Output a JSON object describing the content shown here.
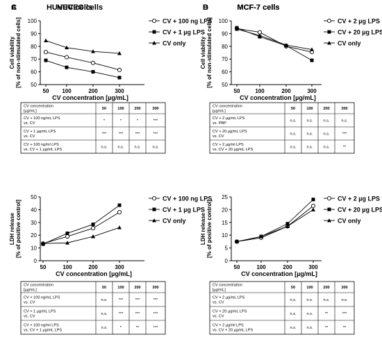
{
  "panels": [
    {
      "letter": "A",
      "table": {
        "header": [
          "CV concentration\n[µg/mL]",
          "50",
          "100",
          "200",
          "300"
        ],
        "rows": [
          [
            "CV + 100 ng/mL LPS\nvs. CV",
            "*",
            "*",
            "*",
            "***"
          ],
          [
            "CV + 1 µg/mL LPS\nvs. CV",
            "***",
            "***",
            "***",
            "***"
          ],
          [
            "CV + 100 ng/ml LPS\nvs. CV + 1 µg/mL LPS",
            "n.s.",
            "n.s.",
            "n.s.",
            "n.s."
          ]
        ]
      }
    },
    {
      "letter": "B",
      "table": {
        "header": [
          "CV concentration\n[µg/mL]",
          "50",
          "100",
          "200",
          "300"
        ],
        "rows": [
          [
            "CV + 2 µg/mL LPS\nvs. PBP",
            "n.s.",
            "n.s.",
            "n.s.",
            "n.s."
          ],
          [
            "CV + 20 µg/mL LPS\nvs. CV",
            "n.s.",
            "n.s.",
            "n.s.",
            "***"
          ],
          [
            "CV + 2 µg/ml LPS\nvs. CV + 20 µg/mL LPS",
            "n.s.",
            "n.s.",
            "n.s.",
            "**"
          ]
        ]
      }
    },
    {
      "letter": "C",
      "table": {
        "header": [
          "CV concentration\n[µg/mL]",
          "50",
          "100",
          "200",
          "300"
        ],
        "rows": [
          [
            "CV + 100 ng/mL LPS\nvs. CV",
            "n.s.",
            "***",
            "***",
            "***"
          ],
          [
            "CV + 1 µg/mL LPS\nvs. CV",
            "n.s.",
            "***",
            "***",
            "***"
          ],
          [
            "CV + 100 ng/ml LPS\nvs. CV + 1 µg/mL LPS",
            "n.s.",
            "*",
            "**",
            "***"
          ]
        ]
      }
    },
    {
      "letter": "D",
      "table": {
        "header": [
          "CV concentration\n[µg/mL]",
          "50",
          "100",
          "200",
          "300"
        ],
        "rows": [
          [
            "CV + 2 µg/mL LPS\nvs. CV",
            "n.s.",
            "n.s.",
            "n.s.",
            "n.s."
          ],
          [
            "CV + 20 µg/mL LPS\nvs. CV",
            "n.s.",
            "n.s.",
            "**",
            "***"
          ],
          [
            "CV + 2 µg/ml LPS\nvs. CV + 20 µg/mL LPS",
            "n.s.",
            "n.s.",
            "**",
            "**"
          ]
        ]
      }
    }
  ],
  "chart_data": [
    {
      "type": "line",
      "title": "HUVEC cells",
      "xlabel": "CV  concentration [µg/mL]",
      "ylabel": [
        "Cell viability",
        "[% of non-stimulated cells]"
      ],
      "categories": [
        "50",
        "100",
        "200",
        "300"
      ],
      "ylim": [
        50,
        100
      ],
      "yticks": [
        50,
        60,
        70,
        80,
        90,
        100
      ],
      "legend_position": "right",
      "series": [
        {
          "name": "CV + 100 ng LPS",
          "marker": "open-circle",
          "values": [
            75.5,
            71.5,
            67,
            61.5
          ]
        },
        {
          "name": "CV + 1 µg LPS",
          "marker": "filled-square",
          "values": [
            69,
            63.5,
            60,
            55.5
          ]
        },
        {
          "name": "CV only",
          "marker": "filled-triangle",
          "values": [
            84.5,
            79,
            76,
            74.5
          ]
        }
      ]
    },
    {
      "type": "line",
      "title": "MCF-7 cells",
      "xlabel": "CV  concentration [µg/mL]",
      "ylabel": [
        "Cell viability",
        "[% of non-stimulated cells]"
      ],
      "categories": [
        "50",
        "100",
        "200",
        "300"
      ],
      "ylim": [
        50,
        100
      ],
      "yticks": [
        50,
        60,
        70,
        80,
        90,
        100
      ],
      "legend_position": "right",
      "series": [
        {
          "name": "CV + 2 µg LPS",
          "marker": "open-circle",
          "values": [
            94,
            91,
            80,
            75.5
          ]
        },
        {
          "name": "CV + 20 µg LPS",
          "marker": "filled-square",
          "values": [
            94.5,
            87.5,
            80.5,
            69
          ]
        },
        {
          "name": "CV only",
          "marker": "filled-triangle",
          "values": [
            93.5,
            88.5,
            81,
            77.5
          ]
        }
      ]
    },
    {
      "type": "line",
      "title": "HUVEC cells",
      "xlabel": "CV concentration [µg/mL]",
      "ylabel": [
        "LDH release",
        "[% of positive control]"
      ],
      "categories": [
        "50",
        "100",
        "200",
        "300"
      ],
      "ylim": [
        0,
        50
      ],
      "yticks": [
        0,
        10,
        20,
        30,
        40,
        50
      ],
      "legend_position": "right",
      "series": [
        {
          "name": "CV + 100 ng LPS",
          "marker": "open-circle",
          "values": [
            13.5,
            19,
            25.5,
            38
          ]
        },
        {
          "name": "CV + 1 µg LPS",
          "marker": "filled-square",
          "values": [
            13,
            21.5,
            28.5,
            43.5
          ]
        },
        {
          "name": "CV only",
          "marker": "filled-triangle",
          "values": [
            13.5,
            14,
            19,
            26
          ]
        }
      ]
    },
    {
      "type": "line",
      "title": "MCF-7 cells",
      "xlabel": "CV concentration [µg/mL]",
      "ylabel": [
        "LDH release",
        "[% of positive control]"
      ],
      "categories": [
        "50",
        "100",
        "200",
        "300"
      ],
      "ylim": [
        0,
        25
      ],
      "yticks": [
        0,
        5,
        10,
        15,
        20,
        25
      ],
      "legend_position": "right",
      "series": [
        {
          "name": "CV + 2 µg LPS",
          "marker": "open-circle",
          "values": [
            7.5,
            9,
            13.5,
            21.5
          ]
        },
        {
          "name": "CV + 20 µg LPS",
          "marker": "filled-square",
          "values": [
            7.5,
            9.5,
            14.5,
            24
          ]
        },
        {
          "name": "CV only",
          "marker": "filled-triangle",
          "values": [
            7.5,
            9.5,
            13.5,
            20
          ]
        }
      ]
    }
  ]
}
